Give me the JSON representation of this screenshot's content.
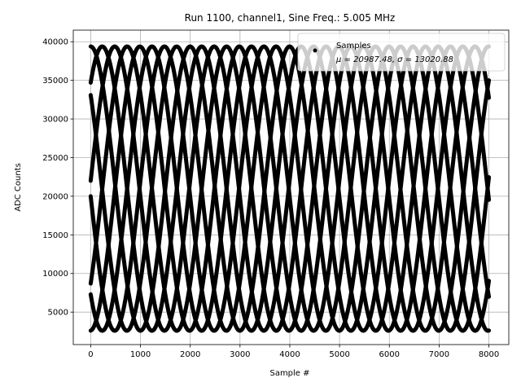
{
  "chart_data": {
    "type": "scatter",
    "title": "Run 1100, channel1, Sine Freq.: 5.005 MHz",
    "xlabel": "Sample #",
    "ylabel": "ADC Counts",
    "xlim": [
      -350,
      8400
    ],
    "ylim": [
      800,
      41500
    ],
    "xticks": [
      0,
      1000,
      2000,
      3000,
      4000,
      5000,
      6000,
      7000,
      8000
    ],
    "yticks": [
      5000,
      10000,
      15000,
      20000,
      25000,
      30000,
      35000,
      40000
    ],
    "grid": true,
    "legend_position": "top-right",
    "series": [
      {
        "name": "Samples",
        "stats_label": "μ = 20987.48, σ = 13020.88",
        "x_range": [
          0,
          8000
        ],
        "offset": 20987.48,
        "amplitude": 18400,
        "period_samples": 1998,
        "phase_starts_adc": [
          39400,
          34700,
          33100,
          22000,
          20000,
          8700,
          7300,
          2600
        ],
        "color": "#000000",
        "marker": "dot"
      }
    ]
  }
}
